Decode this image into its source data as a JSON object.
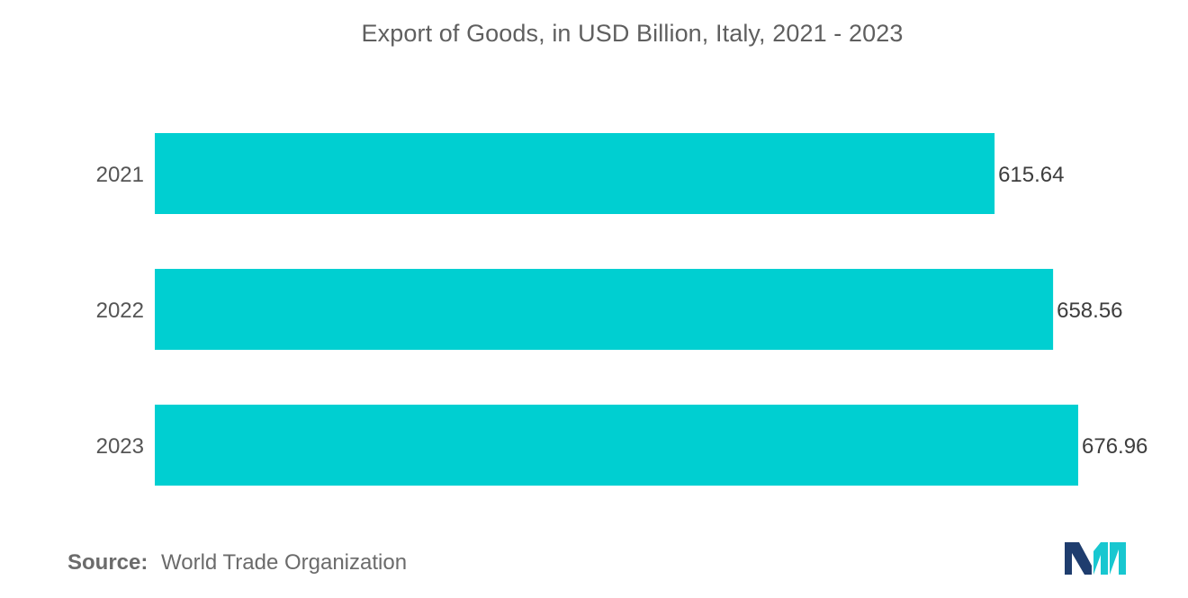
{
  "chart_data": {
    "type": "bar",
    "orientation": "horizontal",
    "title": "Export of Goods, in USD Billion, Italy, 2021 - 2023",
    "categories": [
      "2021",
      "2022",
      "2023"
    ],
    "values": [
      615.64,
      658.56,
      676.96
    ],
    "value_labels": [
      "615.64",
      "658.56",
      "676.96"
    ],
    "xlim": [
      0,
      676.96
    ],
    "grid": false,
    "legend": "none",
    "bar_color": "#00cfd1"
  },
  "footer": {
    "source_label": "Source:",
    "source_text": "World Trade Organization"
  },
  "logo": {
    "icon": "mordor-intelligence-logo-icon",
    "colors": [
      "#1f3d6e",
      "#18c7d0"
    ]
  }
}
